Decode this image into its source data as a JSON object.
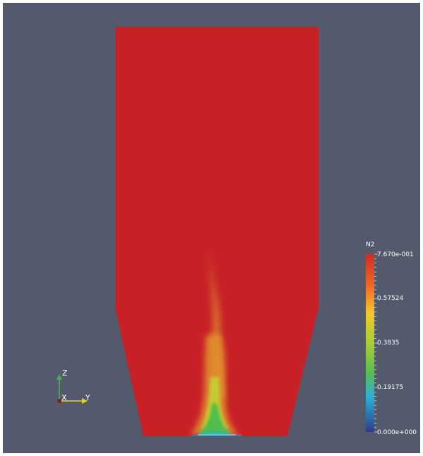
{
  "colors": {
    "background": "#535a6b",
    "field_max": "#c72127",
    "legend_text": "#ffffff"
  },
  "legend": {
    "title": "N2",
    "labels": [
      "7.670e-001",
      "0.57524",
      "0.3835",
      "0.19175",
      "0.000e+000"
    ],
    "values": [
      0.767,
      0.57524,
      0.3835,
      0.19175,
      0.0
    ]
  },
  "axes_widget": {
    "z_label": "Z",
    "x_label": "X",
    "y_label": "Y"
  }
}
